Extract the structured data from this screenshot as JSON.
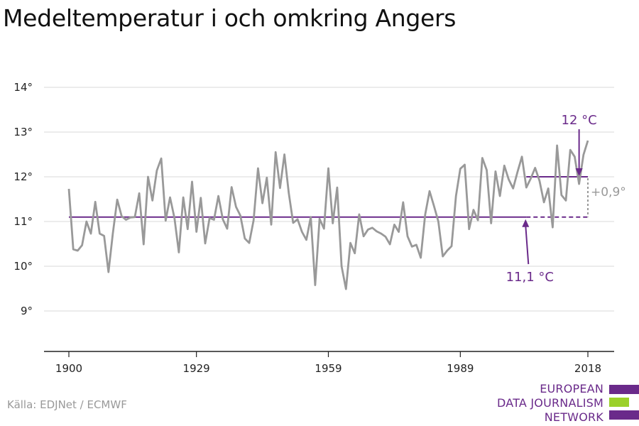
{
  "title": "Medeltemperatur i och omkring Angers",
  "source": "Källa: EDJNet / ECMWF",
  "logo": {
    "lines": [
      "EUROPEAN",
      "DATA JOURNALISM",
      "NETWORK"
    ],
    "colors": [
      "#6a2a8a",
      "#9bd12a",
      "#6a2a8a"
    ]
  },
  "colors": {
    "series": "#999999",
    "reference": "#6a2a8a",
    "grid": "#d9d9d9",
    "diff": "#999999"
  },
  "chart_data": {
    "type": "line",
    "title": "Medeltemperatur i och omkring Angers",
    "xlim": [
      1900,
      2018
    ],
    "ylim": [
      8,
      14.5
    ],
    "x_ticks": [
      "1900",
      "1929",
      "1959",
      "1989",
      "2018"
    ],
    "y_ticks": [
      "9°",
      "10°",
      "11°",
      "12°",
      "13°",
      "14°"
    ],
    "grid": true,
    "x": [
      1900,
      1901,
      1902,
      1903,
      1904,
      1905,
      1906,
      1907,
      1908,
      1909,
      1910,
      1911,
      1912,
      1913,
      1914,
      1915,
      1916,
      1917,
      1918,
      1919,
      1920,
      1921,
      1922,
      1923,
      1924,
      1925,
      1926,
      1927,
      1928,
      1929,
      1930,
      1931,
      1932,
      1933,
      1934,
      1935,
      1936,
      1937,
      1938,
      1939,
      1940,
      1941,
      1942,
      1943,
      1944,
      1945,
      1946,
      1947,
      1948,
      1949,
      1950,
      1951,
      1952,
      1953,
      1954,
      1955,
      1956,
      1957,
      1958,
      1959,
      1960,
      1961,
      1962,
      1963,
      1964,
      1965,
      1966,
      1967,
      1968,
      1969,
      1970,
      1971,
      1972,
      1973,
      1974,
      1975,
      1976,
      1977,
      1978,
      1979,
      1980,
      1981,
      1982,
      1983,
      1984,
      1985,
      1986,
      1987,
      1988,
      1989,
      1990,
      1991,
      1992,
      1993,
      1994,
      1995,
      1996,
      1997,
      1998,
      1999,
      2000,
      2001,
      2002,
      2003,
      2004,
      2005,
      2006,
      2007,
      2008,
      2009,
      2010,
      2011,
      2012,
      2013,
      2014,
      2015,
      2016,
      2017,
      2018
    ],
    "series": [
      {
        "values": [
          11.73,
          10.38,
          10.35,
          10.47,
          11.0,
          10.73,
          11.44,
          10.73,
          10.68,
          9.87,
          10.73,
          11.49,
          11.12,
          11.04,
          11.09,
          11.1,
          11.63,
          10.49,
          12.0,
          11.47,
          12.14,
          12.41,
          11.02,
          11.54,
          11.08,
          10.31,
          11.54,
          10.83,
          11.89,
          10.77,
          11.53,
          10.51,
          11.08,
          11.04,
          11.57,
          11.05,
          10.84,
          11.77,
          11.33,
          11.13,
          10.62,
          10.52,
          11.03,
          12.19,
          11.41,
          11.98,
          10.93,
          12.55,
          11.75,
          12.5,
          11.64,
          10.97,
          11.05,
          10.77,
          10.59,
          11.1,
          9.58,
          11.06,
          10.84,
          12.19,
          10.96,
          11.76,
          10.0,
          9.49,
          10.52,
          10.29,
          11.16,
          10.67,
          10.82,
          10.86,
          10.78,
          10.73,
          10.66,
          10.49,
          10.93,
          10.77,
          11.43,
          10.67,
          10.44,
          10.48,
          10.19,
          11.15,
          11.68,
          11.35,
          11.0,
          10.22,
          10.35,
          10.45,
          11.57,
          12.18,
          12.27,
          10.83,
          11.26,
          11.03,
          12.42,
          12.15,
          10.96,
          12.12,
          11.57,
          12.25,
          11.94,
          11.74,
          12.11,
          12.45,
          11.76,
          11.96,
          12.2,
          11.91,
          11.43,
          11.74,
          10.87,
          12.7,
          11.59,
          11.47,
          12.6,
          12.45,
          11.84,
          12.49,
          12.81
        ]
      }
    ],
    "reference_mean": 11.1,
    "reference_period": [
      1900,
      2004
    ],
    "recent_mean": 12.0,
    "recent_period": [
      2004,
      2018
    ],
    "annotations": {
      "recent_label": "12 °C",
      "reference_label": "11,1 °C",
      "difference_label": "+0,9°"
    }
  }
}
